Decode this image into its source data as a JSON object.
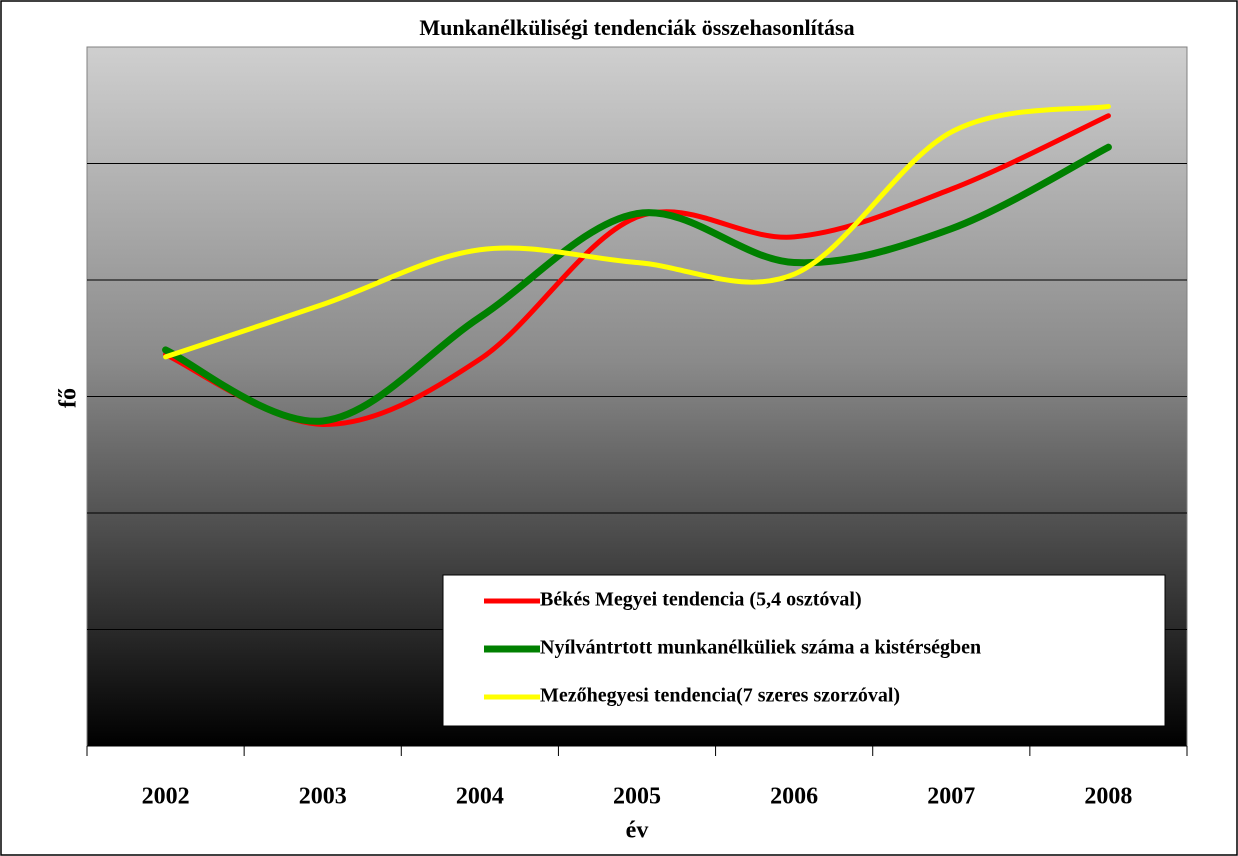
{
  "chart_data": {
    "type": "line",
    "title": "Munkanélküliségi tendenciák összehasonlítása",
    "x_label": "év",
    "y_label": "fő",
    "categories": [
      "2002",
      "2003",
      "2004",
      "2005",
      "2006",
      "2007",
      "2008"
    ],
    "ylim": [
      0,
      6
    ],
    "yticks": [
      1,
      2,
      3,
      4,
      5
    ],
    "grid": true,
    "legend": "lower right",
    "series": [
      {
        "name": "Békés Megyei tendencia (5,4 osztóval)",
        "color": "#ff0000",
        "values": [
          3.36,
          2.76,
          3.32,
          4.54,
          4.37,
          4.78,
          5.41
        ]
      },
      {
        "name": "Nyílvántrtott munkanélküliek száma a kistérségben",
        "color": "#008000",
        "values": [
          3.4,
          2.79,
          3.68,
          4.57,
          4.15,
          4.44,
          5.14
        ]
      },
      {
        "name": "Mezőhegyesi tendencia(7 szeres szorzóval)",
        "color": "#ffff00",
        "values": [
          3.34,
          3.79,
          4.26,
          4.15,
          4.05,
          5.27,
          5.49
        ]
      }
    ]
  }
}
